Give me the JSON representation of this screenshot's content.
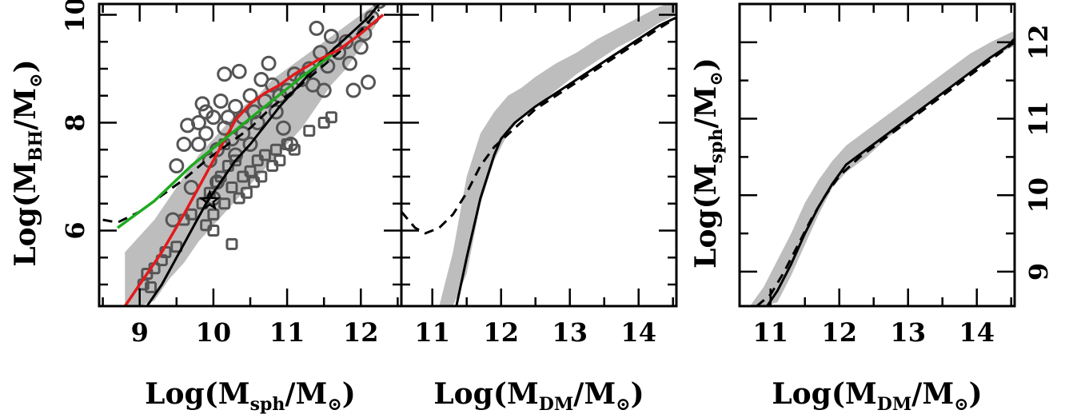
{
  "chart_data": [
    {
      "type": "scatter",
      "xlabel": {
        "pre": "Log(M",
        "sub": "sph",
        "mid": "/M",
        "post": ")"
      },
      "ylabel": {
        "pre": "Log(M",
        "sub": "BH",
        "mid": "/M",
        "post": ")"
      },
      "xlim": [
        8.45,
        12.55
      ],
      "ylim": [
        4.6,
        10.2
      ],
      "xticks": [
        "9",
        "10",
        "11",
        "12"
      ],
      "yticks": [
        "6",
        "8",
        "10"
      ],
      "colors": {
        "band": "#bdbdbd",
        "markers": "#555555",
        "red": "#e31a1c",
        "green": "#1faa1f",
        "black": "#000000"
      },
      "band": {
        "x": [
          8.8,
          9.0,
          9.2,
          9.4,
          9.6,
          9.8,
          10.0,
          10.2,
          10.4,
          10.6,
          10.8,
          11.0,
          11.2,
          11.4,
          11.6,
          11.8,
          12.0,
          12.2
        ],
        "lower": [
          4.6,
          4.6,
          4.7,
          5.1,
          5.4,
          5.8,
          6.1,
          6.4,
          6.7,
          7.0,
          7.3,
          7.6,
          7.9,
          8.3,
          8.7,
          9.0,
          9.4,
          9.8
        ],
        "upper": [
          5.6,
          5.9,
          6.2,
          6.6,
          7.0,
          7.4,
          7.7,
          8.0,
          8.3,
          8.5,
          8.8,
          9.0,
          9.2,
          9.4,
          9.6,
          9.8,
          10.0,
          10.2
        ]
      },
      "series": [
        {
          "style": "solid-black",
          "x": [
            9.1,
            9.3,
            9.5,
            9.7,
            9.9,
            10.1,
            10.3,
            10.5,
            10.7,
            10.9,
            11.1,
            11.3,
            11.5,
            11.7,
            11.9,
            12.1,
            12.25
          ],
          "y": [
            4.6,
            5.0,
            5.5,
            6.0,
            6.5,
            6.9,
            7.3,
            7.6,
            7.95,
            8.3,
            8.6,
            8.9,
            9.2,
            9.45,
            9.7,
            9.95,
            10.2
          ]
        },
        {
          "style": "dashed-black",
          "x": [
            8.5,
            8.7,
            9.0,
            9.3,
            9.6,
            9.9,
            10.2,
            10.5,
            10.8,
            11.1,
            11.4,
            11.7,
            12.0,
            12.25
          ],
          "y": [
            6.2,
            6.15,
            6.35,
            6.65,
            6.95,
            7.3,
            7.6,
            7.9,
            8.3,
            8.6,
            8.95,
            9.3,
            9.7,
            10.1
          ]
        },
        {
          "style": "solid-red",
          "x": [
            8.8,
            9.0,
            9.3,
            9.6,
            9.8,
            10.0,
            10.2,
            10.3,
            10.5,
            10.7,
            10.9,
            11.1,
            11.4,
            11.7,
            12.0,
            12.3
          ],
          "y": [
            4.6,
            5.0,
            5.6,
            6.3,
            6.8,
            7.3,
            7.8,
            8.05,
            8.35,
            8.55,
            8.7,
            8.9,
            9.15,
            9.35,
            9.65,
            10.0
          ]
        },
        {
          "style": "solid-green",
          "x": [
            8.7,
            9.2,
            9.7,
            10.2,
            10.7,
            11.2,
            11.6
          ],
          "y": [
            6.05,
            6.55,
            7.2,
            7.75,
            8.3,
            8.85,
            9.25
          ]
        }
      ],
      "circles": [
        [
          9.5,
          7.2
        ],
        [
          9.6,
          7.6
        ],
        [
          9.65,
          7.95
        ],
        [
          9.7,
          6.8
        ],
        [
          9.8,
          7.6
        ],
        [
          9.8,
          8.0
        ],
        [
          9.85,
          8.35
        ],
        [
          9.9,
          8.2
        ],
        [
          9.9,
          7.8
        ],
        [
          9.95,
          7.3
        ],
        [
          10.0,
          8.1
        ],
        [
          10.0,
          6.6
        ],
        [
          10.05,
          7.5
        ],
        [
          10.1,
          8.4
        ],
        [
          10.15,
          8.9
        ],
        [
          10.15,
          7.9
        ],
        [
          10.2,
          8.1
        ],
        [
          10.25,
          7.7
        ],
        [
          10.3,
          8.3
        ],
        [
          10.3,
          7.4
        ],
        [
          10.35,
          8.95
        ],
        [
          10.4,
          7.8
        ],
        [
          10.4,
          8.1
        ],
        [
          10.5,
          8.5
        ],
        [
          10.5,
          7.6
        ],
        [
          10.55,
          8.2
        ],
        [
          10.6,
          8.0
        ],
        [
          10.65,
          8.8
        ],
        [
          10.7,
          8.4
        ],
        [
          10.75,
          9.1
        ],
        [
          10.8,
          8.7
        ],
        [
          10.85,
          8.2
        ],
        [
          10.9,
          8.5
        ],
        [
          10.95,
          7.9
        ],
        [
          11.0,
          8.6
        ],
        [
          11.05,
          7.6
        ],
        [
          11.1,
          8.9
        ],
        [
          11.2,
          8.8
        ],
        [
          11.3,
          9.0
        ],
        [
          11.35,
          8.7
        ],
        [
          11.4,
          9.75
        ],
        [
          11.45,
          9.3
        ],
        [
          11.5,
          8.6
        ],
        [
          11.55,
          9.05
        ],
        [
          11.6,
          9.6
        ],
        [
          11.7,
          9.3
        ],
        [
          11.8,
          9.5
        ],
        [
          11.85,
          9.1
        ],
        [
          11.9,
          8.6
        ],
        [
          12.0,
          9.4
        ],
        [
          12.05,
          9.65
        ],
        [
          12.1,
          8.75
        ],
        [
          12.15,
          9.95
        ],
        [
          12.25,
          10.25
        ],
        [
          9.45,
          6.2
        ],
        [
          10.05,
          6.9
        ]
      ],
      "squares": [
        [
          9.05,
          5.0
        ],
        [
          9.1,
          5.2
        ],
        [
          9.15,
          4.95
        ],
        [
          9.2,
          5.3
        ],
        [
          9.3,
          5.45
        ],
        [
          9.35,
          5.6
        ],
        [
          9.5,
          5.7
        ],
        [
          9.6,
          6.2
        ],
        [
          9.7,
          6.3
        ],
        [
          9.85,
          6.5
        ],
        [
          9.9,
          6.1
        ],
        [
          9.95,
          6.7
        ],
        [
          10.0,
          6.3
        ],
        [
          10.05,
          6.9
        ],
        [
          10.1,
          7.0
        ],
        [
          10.15,
          6.5
        ],
        [
          10.2,
          7.2
        ],
        [
          10.25,
          6.8
        ],
        [
          10.3,
          7.3
        ],
        [
          10.35,
          6.6
        ],
        [
          10.4,
          7.0
        ],
        [
          10.45,
          6.7
        ],
        [
          10.5,
          7.1
        ],
        [
          10.55,
          6.9
        ],
        [
          10.6,
          7.3
        ],
        [
          10.65,
          7.0
        ],
        [
          10.7,
          7.4
        ],
        [
          10.8,
          7.2
        ],
        [
          10.85,
          7.5
        ],
        [
          10.9,
          7.3
        ],
        [
          11.0,
          7.6
        ],
        [
          11.1,
          7.5
        ],
        [
          11.3,
          7.85
        ],
        [
          11.5,
          8.0
        ],
        [
          11.6,
          8.1
        ],
        [
          10.25,
          5.75
        ],
        [
          10.0,
          6.0
        ],
        [
          10.15,
          7.6
        ]
      ],
      "star": [
        9.95,
        6.55
      ]
    },
    {
      "type": "line",
      "xlabel": {
        "pre": "Log(M",
        "sub": "DM",
        "mid": "/M",
        "post": ")"
      },
      "ylabel": null,
      "xlim": [
        10.55,
        14.55
      ],
      "ylim": [
        4.6,
        10.2
      ],
      "xticks": [
        "11",
        "12",
        "13",
        "14"
      ],
      "yticks": [],
      "band": {
        "x": [
          11.1,
          11.3,
          11.5,
          11.7,
          11.9,
          12.1,
          12.3,
          12.5,
          12.8,
          13.1,
          13.4,
          13.7,
          14.0,
          14.3,
          14.55
        ],
        "lower": [
          4.6,
          4.6,
          5.2,
          6.5,
          7.3,
          7.8,
          8.1,
          8.3,
          8.6,
          8.9,
          9.15,
          9.4,
          9.6,
          9.85,
          10.0
        ],
        "upper": [
          4.6,
          5.6,
          7.0,
          7.8,
          8.2,
          8.5,
          8.65,
          8.85,
          9.1,
          9.3,
          9.55,
          9.75,
          9.95,
          10.15,
          10.25
        ]
      },
      "series": [
        {
          "style": "solid-black",
          "x": [
            11.35,
            11.5,
            11.7,
            11.9,
            12.0,
            12.2,
            12.5,
            12.8,
            13.1,
            13.4,
            13.7,
            14.0,
            14.3,
            14.55
          ],
          "y": [
            4.6,
            5.5,
            6.6,
            7.4,
            7.7,
            8.0,
            8.3,
            8.55,
            8.8,
            9.05,
            9.3,
            9.55,
            9.8,
            9.95
          ]
        },
        {
          "style": "dashed-black",
          "x": [
            10.55,
            10.65,
            10.75,
            10.9,
            11.1,
            11.3,
            11.5,
            11.7,
            11.9,
            12.2,
            12.5,
            12.8,
            13.1,
            13.4,
            13.7,
            14.0,
            14.3,
            14.55
          ],
          "y": [
            6.35,
            6.2,
            6.05,
            5.95,
            6.05,
            6.3,
            6.7,
            7.2,
            7.55,
            7.9,
            8.25,
            8.5,
            8.75,
            9.0,
            9.25,
            9.5,
            9.75,
            9.95
          ]
        }
      ]
    },
    {
      "type": "line",
      "xlabel": {
        "pre": "Log(M",
        "sub": "DM",
        "mid": "/M",
        "post": ")"
      },
      "ylabel": {
        "pre": "Log(M",
        "sub": "sph",
        "mid": "/M",
        "post": ")"
      },
      "xlim": [
        10.55,
        14.55
      ],
      "ylim": [
        8.55,
        12.5
      ],
      "xticks": [
        "11",
        "12",
        "13",
        "14"
      ],
      "yticks": [
        "9",
        "10",
        "11",
        "12"
      ],
      "band": {
        "x": [
          10.7,
          10.9,
          11.1,
          11.3,
          11.5,
          11.7,
          11.9,
          12.1,
          12.4,
          12.7,
          13.0,
          13.3,
          13.6,
          13.9,
          14.2,
          14.55
        ],
        "lower": [
          8.55,
          8.55,
          8.6,
          8.95,
          9.35,
          9.75,
          10.1,
          10.3,
          10.5,
          10.75,
          10.95,
          11.2,
          11.4,
          11.6,
          11.8,
          11.95
        ],
        "upper": [
          8.55,
          8.8,
          9.15,
          9.5,
          9.9,
          10.2,
          10.45,
          10.65,
          10.85,
          11.05,
          11.25,
          11.45,
          11.65,
          11.85,
          12.0,
          12.15
        ]
      },
      "series": [
        {
          "style": "solid-black",
          "x": [
            10.95,
            11.1,
            11.3,
            11.5,
            11.7,
            11.9,
            12.1,
            12.4,
            12.7,
            13.0,
            13.3,
            13.6,
            13.9,
            14.2,
            14.45,
            14.55
          ],
          "y": [
            8.55,
            8.75,
            9.1,
            9.5,
            9.85,
            10.15,
            10.4,
            10.6,
            10.8,
            11.0,
            11.2,
            11.4,
            11.6,
            11.8,
            11.95,
            12.05
          ]
        },
        {
          "style": "dashed-black",
          "x": [
            10.8,
            11.0,
            11.2,
            11.4,
            11.6,
            11.8,
            12.0,
            12.3,
            12.6,
            12.9,
            13.2,
            13.5,
            13.8,
            14.1,
            14.4,
            14.55
          ],
          "y": [
            8.55,
            8.7,
            9.0,
            9.35,
            9.7,
            10.0,
            10.25,
            10.5,
            10.7,
            10.9,
            11.1,
            11.3,
            11.5,
            11.7,
            11.9,
            12.0
          ]
        }
      ]
    }
  ]
}
